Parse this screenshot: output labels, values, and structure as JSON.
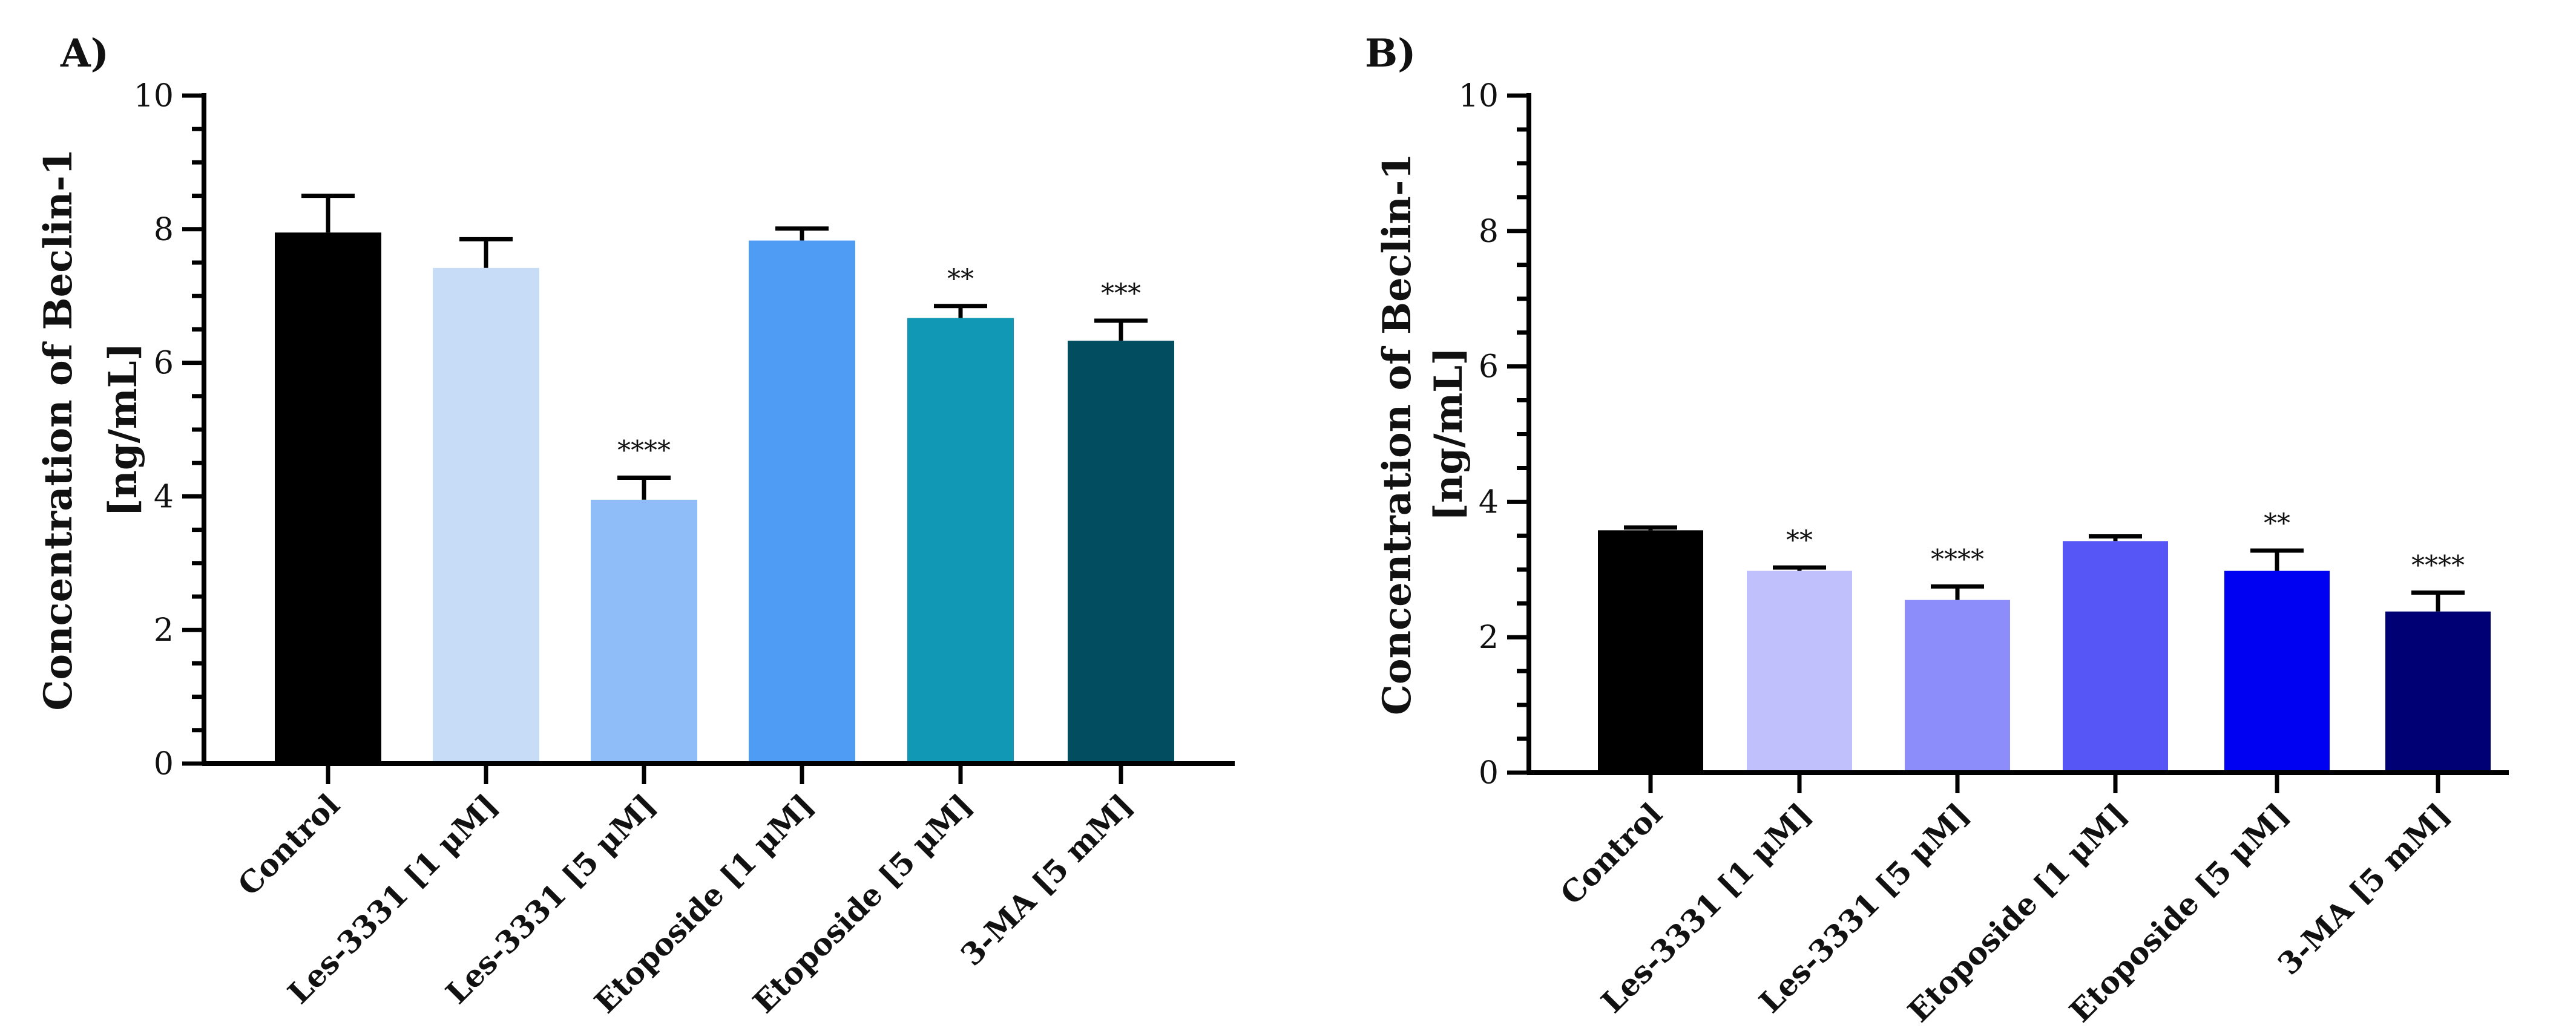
{
  "chart_data": [
    {
      "type": "bar",
      "panel_label": "A)",
      "ylabel_lines": [
        "Concentration of Beclin-1",
        "[ng/mL]"
      ],
      "ylim": [
        0,
        10
      ],
      "yticks": [
        0,
        2,
        4,
        6,
        8,
        10
      ],
      "categories": [
        "Control",
        "Les-3331 [1 μM]",
        "Les-3331 [5 μM]",
        "Etoposide [1 μM]",
        "Etoposide [5 μM]",
        "3-MA [5 mM]"
      ],
      "values": [
        7.95,
        7.42,
        3.95,
        7.83,
        6.67,
        6.33
      ],
      "errors": [
        0.55,
        0.43,
        0.33,
        0.18,
        0.18,
        0.3
      ],
      "significance": [
        "",
        "",
        "****",
        "",
        "**",
        "***"
      ],
      "colors": [
        "#000000",
        "#c7dcf7",
        "#8fbdf7",
        "#4f9cf5",
        "#1198b4",
        "#034d61"
      ]
    },
    {
      "type": "bar",
      "panel_label": "B)",
      "ylabel_lines": [
        "Concentration of Beclin-1",
        "[ng/mL]"
      ],
      "ylim": [
        0,
        10
      ],
      "yticks": [
        0,
        2,
        4,
        6,
        8,
        10
      ],
      "categories": [
        "Control",
        "Les-3331 [1 μM]",
        "Les-3331 [5 μM]",
        "Etoposide [1 μM]",
        "Etoposide [5 μM]",
        "3-MA [5 mM]"
      ],
      "values": [
        3.58,
        2.98,
        2.55,
        3.42,
        2.98,
        2.38
      ],
      "errors": [
        0.04,
        0.05,
        0.2,
        0.07,
        0.3,
        0.28
      ],
      "significance": [
        "",
        "**",
        "****",
        "",
        "**",
        "****"
      ],
      "colors": [
        "#000000",
        "#c0c0fd",
        "#8c8cfb",
        "#5656f7",
        "#0000f3",
        "#000075"
      ]
    }
  ]
}
